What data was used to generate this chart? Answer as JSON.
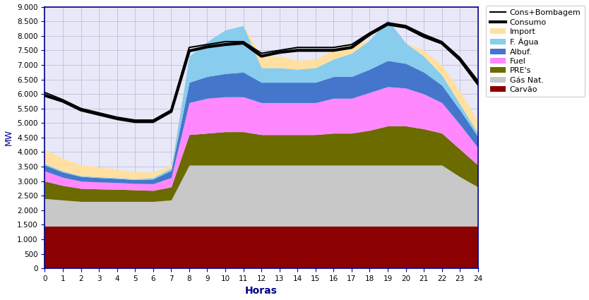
{
  "hours": [
    0,
    1,
    2,
    3,
    4,
    5,
    6,
    7,
    8,
    9,
    10,
    11,
    12,
    13,
    14,
    15,
    16,
    17,
    18,
    19,
    20,
    21,
    22,
    23,
    24
  ],
  "carvao": [
    1450,
    1450,
    1450,
    1450,
    1450,
    1450,
    1450,
    1450,
    1450,
    1450,
    1450,
    1450,
    1450,
    1450,
    1450,
    1450,
    1450,
    1450,
    1450,
    1450,
    1450,
    1450,
    1450,
    1450,
    1450
  ],
  "gas_nat": [
    950,
    900,
    850,
    850,
    850,
    850,
    850,
    900,
    2100,
    2100,
    2100,
    2100,
    2100,
    2100,
    2100,
    2100,
    2100,
    2100,
    2100,
    2100,
    2100,
    2100,
    2100,
    1700,
    1350
  ],
  "pres": [
    600,
    500,
    450,
    430,
    420,
    400,
    380,
    450,
    1050,
    1100,
    1150,
    1150,
    1050,
    1050,
    1050,
    1050,
    1100,
    1100,
    1200,
    1350,
    1350,
    1250,
    1100,
    950,
    750
  ],
  "fuel": [
    350,
    280,
    250,
    240,
    230,
    220,
    230,
    320,
    1100,
    1200,
    1200,
    1200,
    1100,
    1100,
    1100,
    1100,
    1200,
    1200,
    1300,
    1350,
    1300,
    1200,
    1050,
    850,
    600
  ],
  "albuf": [
    200,
    180,
    160,
    150,
    140,
    130,
    160,
    250,
    700,
    750,
    800,
    850,
    700,
    700,
    700,
    700,
    750,
    750,
    800,
    900,
    850,
    750,
    600,
    500,
    380
  ],
  "fagua": [
    50,
    40,
    30,
    30,
    30,
    30,
    50,
    80,
    900,
    1200,
    1500,
    1600,
    500,
    500,
    450,
    500,
    600,
    800,
    1000,
    1400,
    700,
    550,
    350,
    200,
    120
  ],
  "import_": [
    500,
    430,
    380,
    340,
    290,
    240,
    190,
    100,
    0,
    0,
    0,
    0,
    400,
    400,
    300,
    300,
    300,
    300,
    0,
    0,
    0,
    200,
    350,
    450,
    400
  ],
  "cons_bombagem": [
    6050,
    5800,
    5500,
    5350,
    5200,
    5100,
    5100,
    5450,
    7600,
    7700,
    7800,
    7800,
    7400,
    7500,
    7600,
    7600,
    7600,
    7700,
    8100,
    8450,
    8350,
    8050,
    7800,
    7250,
    6450
  ],
  "consumo": [
    5950,
    5750,
    5450,
    5300,
    5150,
    5050,
    5050,
    5400,
    7480,
    7620,
    7700,
    7750,
    7300,
    7430,
    7500,
    7500,
    7500,
    7600,
    8050,
    8400,
    8300,
    7980,
    7750,
    7180,
    6350
  ],
  "colors": {
    "carvao": "#8B0000",
    "gas_nat": "#C8C8C8",
    "pres": "#6B6B00",
    "fuel": "#FF88FF",
    "albuf": "#4477CC",
    "fagua": "#88CCEE",
    "import_": "#FFE0A0"
  },
  "ylim": [
    0,
    9000
  ],
  "xlim": [
    0,
    24
  ],
  "yticks": [
    0,
    500,
    1000,
    1500,
    2000,
    2500,
    3000,
    3500,
    4000,
    4500,
    5000,
    5500,
    6000,
    6500,
    7000,
    7500,
    8000,
    8500,
    9000
  ],
  "ytick_labels": [
    "0",
    "500",
    "1.000",
    "1.500",
    "2.000",
    "2.500",
    "3.000",
    "3.500",
    "4.000",
    "4.500",
    "5.000",
    "5.500",
    "6.000",
    "6.500",
    "7.000",
    "7.500",
    "8.000",
    "8.500",
    "9.000"
  ],
  "xlabel": "Horas",
  "ylabel": "MW",
  "bg_color": "#E8E8F8",
  "grid_color": "#C0C0D8",
  "spine_color": "#000088"
}
